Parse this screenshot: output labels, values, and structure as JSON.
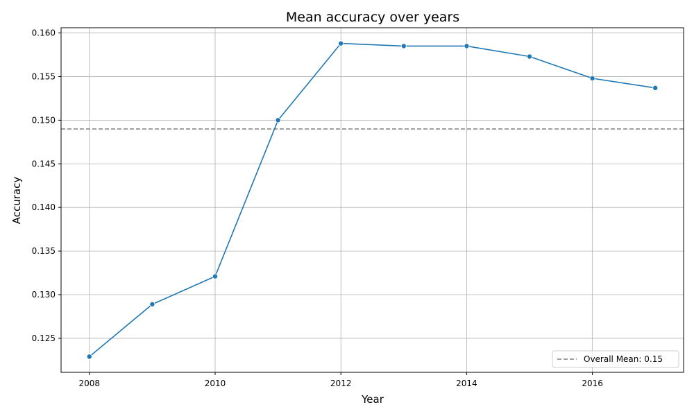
{
  "chart_data": {
    "type": "line",
    "title": "Mean accuracy over years",
    "xlabel": "Year",
    "ylabel": "Accuracy",
    "x": [
      2008,
      2009,
      2010,
      2011,
      2012,
      2013,
      2014,
      2015,
      2016,
      2017
    ],
    "series": [
      {
        "values": [
          0.1229,
          0.1289,
          0.1321,
          0.15,
          0.1588,
          0.1585,
          0.1585,
          0.1573,
          0.1548,
          0.1537
        ],
        "color": "#1f77b4"
      }
    ],
    "reference_line": {
      "label": "Overall Mean: 0.15",
      "value": 0.149,
      "color": "#808080",
      "style": "dashed"
    },
    "xlim": [
      2007.55,
      2017.45
    ],
    "ylim": [
      0.1211,
      0.1606
    ],
    "x_ticks": [
      2008,
      2010,
      2012,
      2014,
      2016
    ],
    "x_tick_labels": [
      "2008",
      "2010",
      "2012",
      "2014",
      "2016"
    ],
    "y_ticks": [
      0.125,
      0.13,
      0.135,
      0.14,
      0.145,
      0.15,
      0.155,
      0.16
    ],
    "y_tick_labels": [
      "0.125",
      "0.130",
      "0.135",
      "0.140",
      "0.145",
      "0.150",
      "0.155",
      "0.160"
    ],
    "grid": true,
    "legend_position": "lower-right"
  }
}
